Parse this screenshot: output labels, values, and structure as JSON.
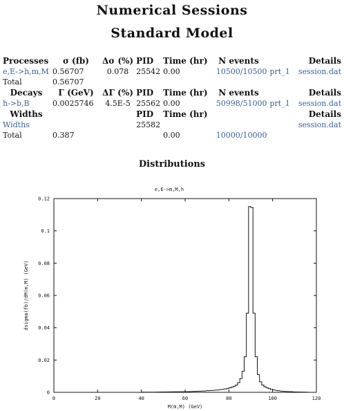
{
  "title": "Numerical Sessions",
  "subtitle": "Standard Model",
  "processes": {
    "headers": [
      "Processes",
      "σ (fb)",
      "Δσ (%)",
      "PID",
      "Time (hr)",
      "N events",
      "Details"
    ],
    "rows": [
      {
        "name": "e,E->h,m,M",
        "value": "0.56707",
        "error": "0.078",
        "pid": "25542",
        "time": "0.00",
        "nevents": "10500/10500",
        "prt": "prt_1",
        "session": "session.dat"
      }
    ],
    "total": {
      "label": "Total",
      "value": "0.56707"
    }
  },
  "decays": {
    "headers": [
      "Decays",
      "Γ (GeV)",
      "ΔΓ (%)",
      "PID",
      "Time (hr)",
      "N events",
      "Details"
    ],
    "rows": [
      {
        "name": "h->b,B",
        "value": "0.0025746",
        "error": "4.5E-5",
        "pid": "25562",
        "time": "0.00",
        "nevents": "50998/51000",
        "prt": "prt_1",
        "session": "session.dat"
      }
    ]
  },
  "widths": {
    "headers": [
      "Widths",
      "PID",
      "Time (hr)",
      "Details"
    ],
    "rows": [
      {
        "name": "Widths",
        "pid": "25582",
        "time": "0.00",
        "session": "session.dat"
      }
    ],
    "total": {
      "label": "Total",
      "value": "0.387",
      "time": "0.00",
      "nevents": "10000/10000"
    }
  },
  "distributions_label": "Distributions",
  "chart_data": {
    "type": "line",
    "title": "e,E->m,M,h",
    "xlabel": "M(m,M) (GeV)",
    "ylabel": "dsigma(fb)/dM(m,M) (GeV)",
    "xlim": [
      0,
      120
    ],
    "ylim": [
      0,
      0.12
    ],
    "xticks": [
      0,
      20,
      40,
      60,
      80,
      100,
      120
    ],
    "xtick_labels": [
      "0",
      "20",
      "40",
      "60",
      "80",
      "100",
      "120"
    ],
    "yticks": [
      0,
      0.02,
      0.04,
      0.06,
      0.08,
      0.1,
      0.12
    ],
    "ytick_labels": [
      "0",
      "0.02",
      "0.04",
      "0.06",
      "0.08",
      "0.1",
      "0.12"
    ],
    "grid": false,
    "line_color": "#111111",
    "bin_width": 1,
    "series": [
      {
        "x": [
          40,
          45,
          50,
          55,
          60,
          62,
          64,
          66,
          68,
          70,
          72,
          74,
          76,
          78,
          79,
          80,
          81,
          82,
          83,
          84,
          85,
          86,
          87,
          88,
          89,
          90,
          91,
          92,
          93,
          94,
          95,
          96,
          97,
          98,
          99,
          100,
          102,
          104,
          106,
          108,
          110,
          115
        ],
        "values": [
          0.0001,
          0.0001,
          0.0002,
          0.0003,
          0.0004,
          0.0005,
          0.0006,
          0.0007,
          0.0008,
          0.001,
          0.0012,
          0.0014,
          0.0017,
          0.0021,
          0.0024,
          0.0028,
          0.0032,
          0.0037,
          0.0045,
          0.006,
          0.0085,
          0.013,
          0.022,
          0.049,
          0.115,
          0.1145,
          0.049,
          0.022,
          0.011,
          0.0065,
          0.0045,
          0.0035,
          0.0028,
          0.0023,
          0.0019,
          0.0015,
          0.001,
          0.0007,
          0.0005,
          0.0004,
          0.0002,
          0.0001
        ]
      }
    ]
  }
}
